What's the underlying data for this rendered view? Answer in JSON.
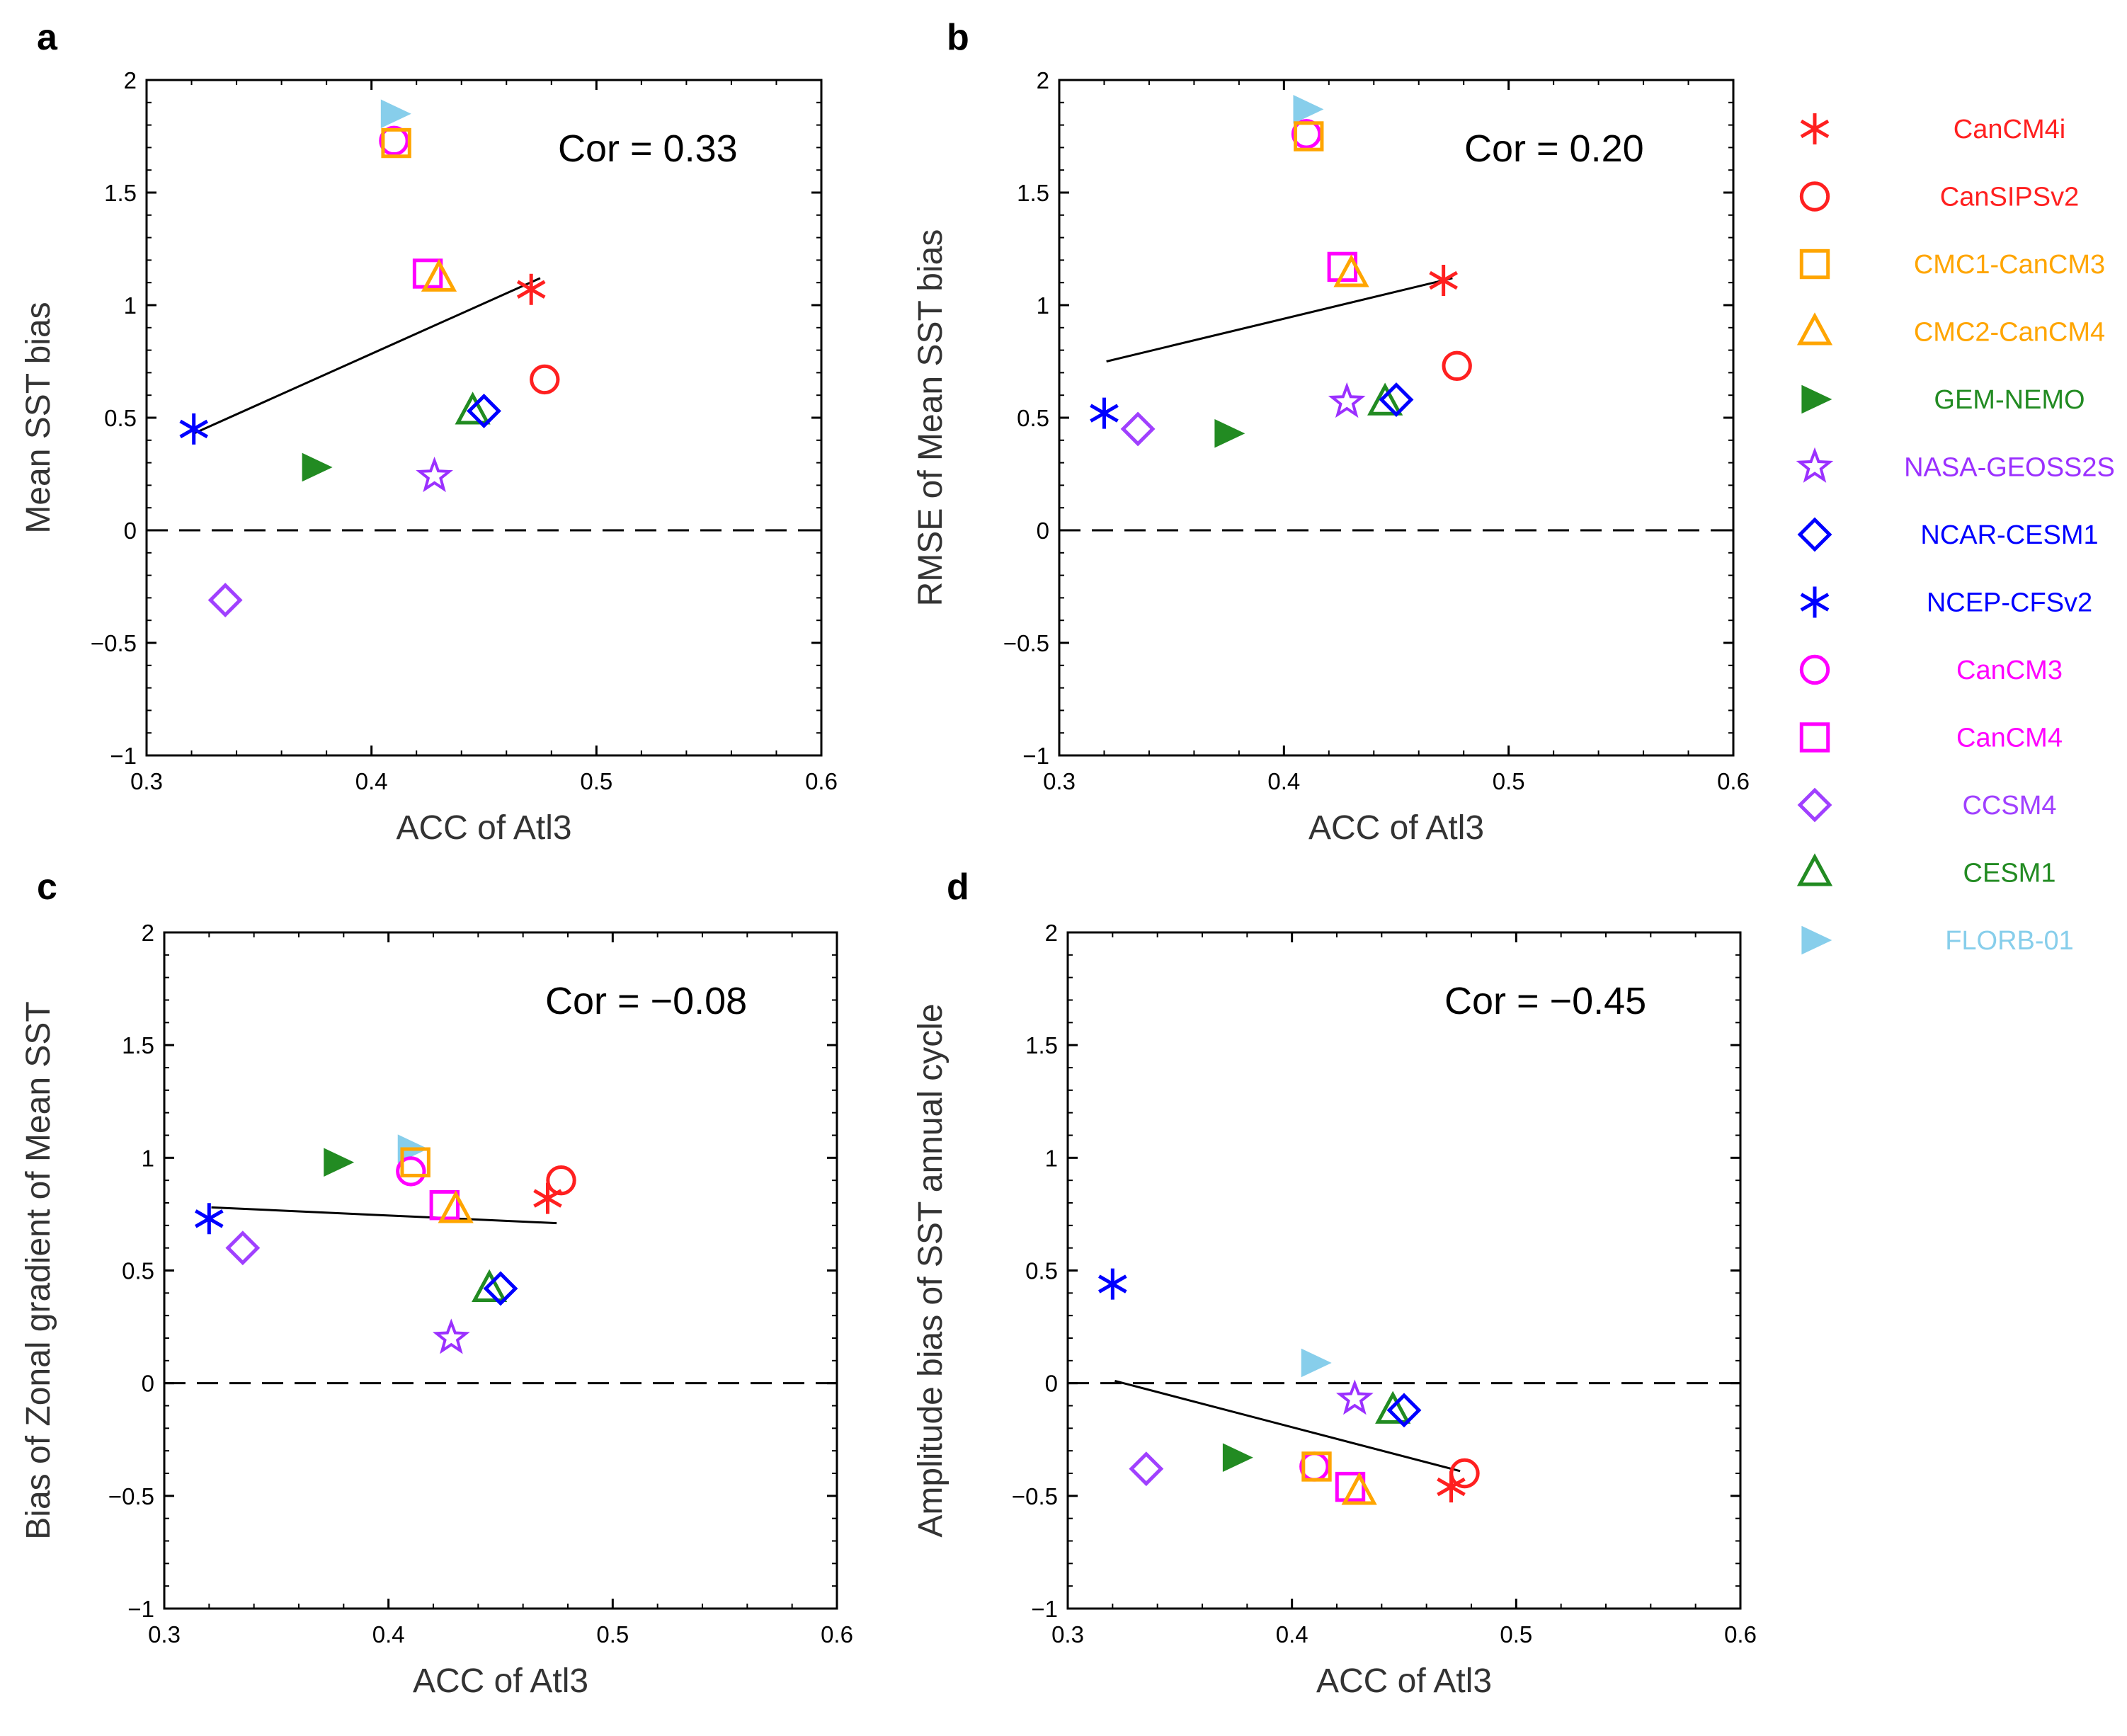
{
  "models": [
    {
      "name": "CanCM4i",
      "marker": "asterisk-6",
      "color": "#ff2020"
    },
    {
      "name": "CanSIPSv2",
      "marker": "circle",
      "color": "#ff2020"
    },
    {
      "name": "CMC1-CanCM3",
      "marker": "square",
      "color": "#ffa500"
    },
    {
      "name": "CMC2-CanCM4",
      "marker": "triangle",
      "color": "#ffa500"
    },
    {
      "name": "GEM-NEMO",
      "marker": "right-triangle-filled",
      "color": "#228b22"
    },
    {
      "name": "NASA-GEOSS2S",
      "marker": "star",
      "color": "#9b30ff"
    },
    {
      "name": "NCAR-CESM1",
      "marker": "diamond",
      "color": "#0000ff"
    },
    {
      "name": "NCEP-CFSv2",
      "marker": "asterisk-6",
      "color": "#0000ff"
    },
    {
      "name": "CanCM3",
      "marker": "circle",
      "color": "#ff00ff"
    },
    {
      "name": "CanCM4",
      "marker": "square",
      "color": "#ff00ff"
    },
    {
      "name": "CCSM4",
      "marker": "diamond",
      "color": "#a040ff"
    },
    {
      "name": "CESM1",
      "marker": "triangle",
      "color": "#228b22"
    },
    {
      "name": "FLORB-01",
      "marker": "right-triangle-filled",
      "color": "#87ceeb"
    }
  ],
  "chart_data": [
    {
      "type": "scatter",
      "panel": "a",
      "xlabel": "ACC of Atl3",
      "ylabel": "Mean SST bias",
      "annotation": "Cor = 0.33",
      "xlim": [
        0.3,
        0.6
      ],
      "ylim": [
        -1,
        2
      ],
      "xticks": [
        "0.3",
        "0.4",
        "0.5",
        "0.6"
      ],
      "yticks": [
        "−1",
        "−0.5",
        "0",
        "0.5",
        "1",
        "1.5",
        "2"
      ],
      "x": [
        0.471,
        0.477,
        0.411,
        0.43,
        0.375,
        0.428,
        0.45,
        0.321,
        0.41,
        0.425,
        0.335,
        0.445,
        0.41
      ],
      "y": [
        1.07,
        0.67,
        1.72,
        1.12,
        0.28,
        0.24,
        0.53,
        0.45,
        1.73,
        1.14,
        -0.31,
        0.53,
        1.85
      ],
      "fit_line": {
        "x": [
          0.321,
          0.475
        ],
        "y": [
          0.43,
          1.12
        ]
      }
    },
    {
      "type": "scatter",
      "panel": "b",
      "xlabel": "ACC of Atl3",
      "ylabel": "RMSE of Mean SST bias",
      "annotation": "Cor = 0.20",
      "xlim": [
        0.3,
        0.6
      ],
      "ylim": [
        -1,
        2
      ],
      "xticks": [
        "0.3",
        "0.4",
        "0.5",
        "0.6"
      ],
      "yticks": [
        "−1",
        "−0.5",
        "0",
        "0.5",
        "1",
        "1.5",
        "2"
      ],
      "x": [
        0.471,
        0.477,
        0.411,
        0.43,
        0.375,
        0.428,
        0.45,
        0.32,
        0.41,
        0.426,
        0.335,
        0.445,
        0.41
      ],
      "y": [
        1.11,
        0.73,
        1.75,
        1.14,
        0.43,
        0.57,
        0.58,
        0.52,
        1.76,
        1.17,
        0.45,
        0.57,
        1.87
      ],
      "fit_line": {
        "x": [
          0.321,
          0.475
        ],
        "y": [
          0.75,
          1.12
        ]
      }
    },
    {
      "type": "scatter",
      "panel": "c",
      "xlabel": "ACC of Atl3",
      "ylabel": "Bias of Zonal gradient of Mean SST",
      "annotation": "Cor = −0.08",
      "xlim": [
        0.3,
        0.6
      ],
      "ylim": [
        -1,
        2
      ],
      "xticks": [
        "0.3",
        "0.4",
        "0.5",
        "0.6"
      ],
      "yticks": [
        "−1",
        "−0.5",
        "0",
        "0.5",
        "1",
        "1.5",
        "2"
      ],
      "x": [
        0.471,
        0.477,
        0.412,
        0.43,
        0.377,
        0.428,
        0.45,
        0.32,
        0.41,
        0.425,
        0.335,
        0.445,
        0.41
      ],
      "y": [
        0.82,
        0.9,
        0.98,
        0.77,
        0.98,
        0.2,
        0.42,
        0.73,
        0.94,
        0.79,
        0.6,
        0.42,
        1.04
      ],
      "fit_line": {
        "x": [
          0.321,
          0.475
        ],
        "y": [
          0.78,
          0.71
        ]
      }
    },
    {
      "type": "scatter",
      "panel": "d",
      "xlabel": "ACC of Atl3",
      "ylabel": "Amplitude bias of SST annual cycle",
      "annotation": "Cor = −0.45",
      "xlim": [
        0.3,
        0.6
      ],
      "ylim": [
        -1,
        2
      ],
      "xticks": [
        "0.3",
        "0.4",
        "0.5",
        "0.6"
      ],
      "yticks": [
        "−1",
        "−0.5",
        "0",
        "0.5",
        "1",
        "1.5",
        "2"
      ],
      "x": [
        0.471,
        0.477,
        0.411,
        0.43,
        0.375,
        0.428,
        0.45,
        0.32,
        0.41,
        0.426,
        0.335,
        0.445,
        0.41
      ],
      "y": [
        -0.46,
        -0.4,
        -0.37,
        -0.48,
        -0.33,
        -0.07,
        -0.12,
        0.44,
        -0.37,
        -0.46,
        -0.38,
        -0.12,
        0.09
      ],
      "fit_line": {
        "x": [
          0.321,
          0.475
        ],
        "y": [
          0.01,
          -0.39
        ]
      }
    }
  ]
}
